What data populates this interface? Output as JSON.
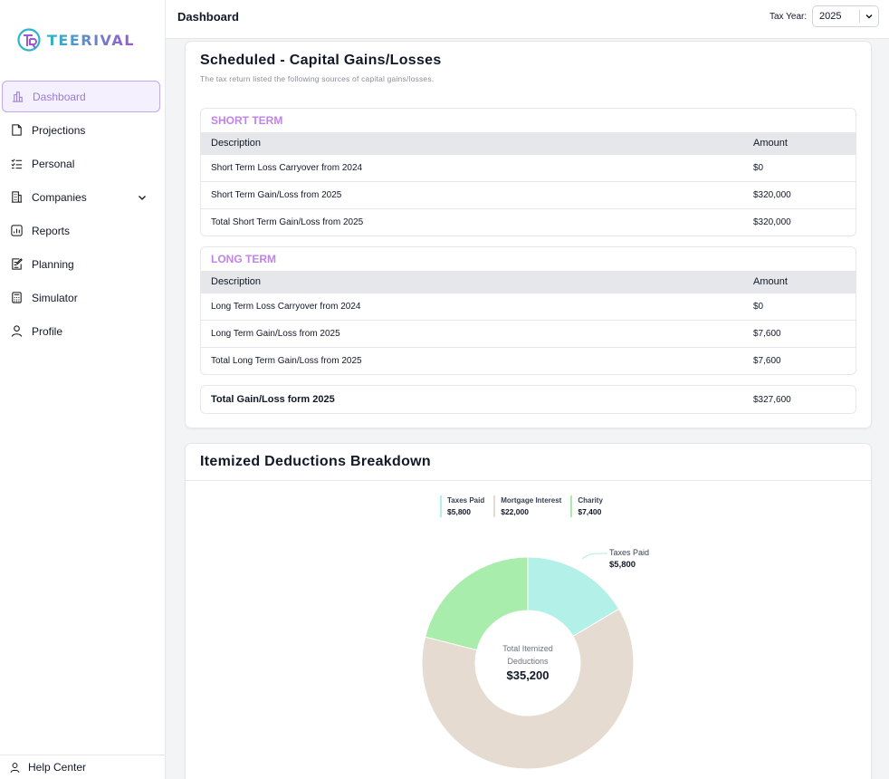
{
  "app": {
    "logo_text": "TEERIVAL"
  },
  "sidebar": {
    "items": [
      {
        "label": "Dashboard",
        "icon": "bar-chart-icon"
      },
      {
        "label": "Projections",
        "icon": "document-icon"
      },
      {
        "label": "Personal",
        "icon": "checklist-icon"
      },
      {
        "label": "Companies",
        "icon": "building-icon"
      },
      {
        "label": "Reports",
        "icon": "report-chart-icon"
      },
      {
        "label": "Planning",
        "icon": "edit-note-icon"
      },
      {
        "label": "Simulator",
        "icon": "calculator-icon"
      },
      {
        "label": "Profile",
        "icon": "user-icon"
      }
    ],
    "help": "Help Center"
  },
  "header": {
    "title": "Dashboard",
    "tax_year_label": "Tax Year:",
    "tax_year_value": "2025"
  },
  "capital": {
    "title": "Scheduled - Capital Gains/Losses",
    "subtitle": "The tax return listed the following sources of capital gains/losses.",
    "col_description": "Description",
    "col_amount": "Amount",
    "short_term": {
      "title": "SHORT TERM",
      "rows": [
        {
          "description": "Short Term Loss Carryover from 2024",
          "amount": "$0"
        },
        {
          "description": "Short Term Gain/Loss from 2025",
          "amount": "$320,000"
        },
        {
          "description": "Total Short Term Gain/Loss from 2025",
          "amount": "$320,000"
        }
      ]
    },
    "long_term": {
      "title": "LONG TERM",
      "rows": [
        {
          "description": "Long Term Loss Carryover from 2024",
          "amount": "$0"
        },
        {
          "description": "Long Term Gain/Loss from 2025",
          "amount": "$7,600"
        },
        {
          "description": "Total Long Term Gain/Loss from 2025",
          "amount": "$7,600"
        }
      ]
    },
    "total": {
      "label": "Total Gain/Loss form 2025",
      "amount": "$327,600"
    }
  },
  "deductions": {
    "title": "Itemized Deductions Breakdown",
    "center_label_1": "Total Itemized",
    "center_label_2": "Deductions",
    "center_value": "$35,200",
    "callout_label": "Taxes Paid",
    "callout_value": "$5,800"
  },
  "chart_data": {
    "type": "pie",
    "title": "Itemized Deductions Breakdown",
    "categories": [
      "Taxes Paid",
      "Mortgage Interest",
      "Charity"
    ],
    "values": [
      5800,
      22000,
      7400
    ],
    "display_values": [
      "$5,800",
      "$22,000",
      "$7,400"
    ],
    "colors": [
      "#b2f0e8",
      "#e5dbd0",
      "#a8edab"
    ],
    "total": 35200,
    "legend_position": "top"
  }
}
